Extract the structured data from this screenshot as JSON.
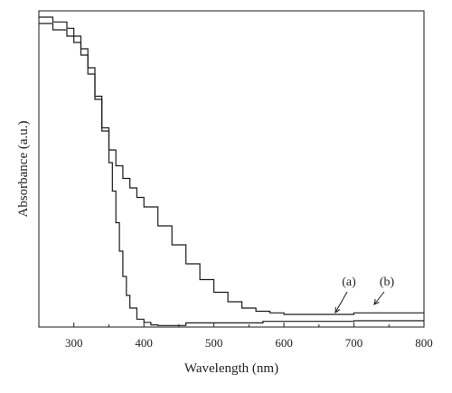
{
  "chart_data": {
    "type": "line",
    "title": "",
    "xlabel": "Wavelength (nm)",
    "ylabel": "Absorbance (a.u.)",
    "xlim": [
      250,
      800
    ],
    "ylim": [
      0,
      1.0
    ],
    "xticks": [
      300,
      400,
      500,
      600,
      700,
      800
    ],
    "xtick_labels": [
      "300",
      "400",
      "500",
      "600",
      "700",
      "800"
    ],
    "yticks_shown": false,
    "grid": false,
    "legend": "none",
    "series": [
      {
        "name": "(a)",
        "x": [
          250,
          270,
          290,
          300,
          310,
          320,
          330,
          340,
          350,
          355,
          360,
          365,
          370,
          375,
          380,
          390,
          400,
          410,
          420,
          440,
          460,
          480,
          500,
          550,
          570,
          600,
          650,
          690,
          700,
          750,
          800
        ],
        "y": [
          0.96,
          0.94,
          0.92,
          0.9,
          0.86,
          0.8,
          0.72,
          0.62,
          0.52,
          0.43,
          0.33,
          0.24,
          0.16,
          0.1,
          0.06,
          0.025,
          0.015,
          0.007,
          0.005,
          0.005,
          0.013,
          0.013,
          0.013,
          0.013,
          0.018,
          0.018,
          0.018,
          0.018,
          0.02,
          0.02,
          0.02
        ]
      },
      {
        "name": "(b)",
        "x": [
          250,
          270,
          290,
          300,
          310,
          320,
          330,
          340,
          350,
          360,
          370,
          380,
          390,
          400,
          420,
          440,
          460,
          480,
          500,
          520,
          540,
          560,
          580,
          600,
          650,
          690,
          700,
          750,
          800
        ],
        "y": [
          0.98,
          0.965,
          0.945,
          0.92,
          0.88,
          0.82,
          0.73,
          0.63,
          0.56,
          0.51,
          0.47,
          0.44,
          0.41,
          0.38,
          0.32,
          0.26,
          0.2,
          0.15,
          0.11,
          0.08,
          0.06,
          0.05,
          0.045,
          0.04,
          0.04,
          0.04,
          0.045,
          0.045,
          0.045
        ]
      }
    ],
    "annotations": [
      {
        "text": "(a)",
        "series": "(a)"
      },
      {
        "text": "(b)",
        "series": "(b)"
      }
    ]
  }
}
